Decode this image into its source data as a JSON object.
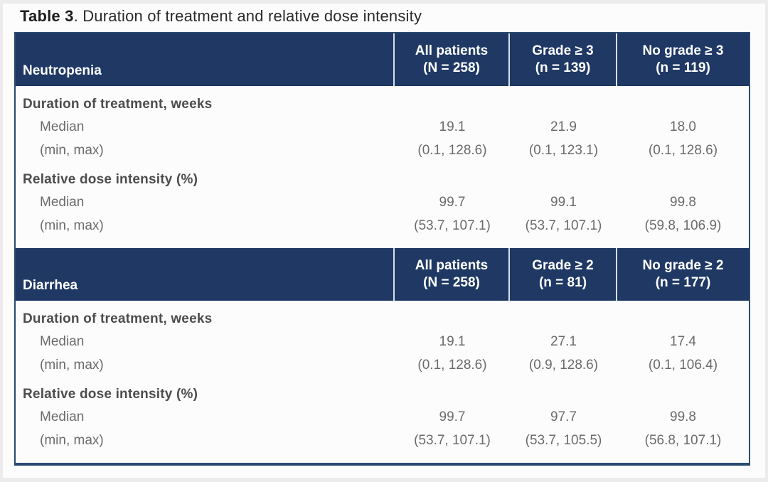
{
  "page": {
    "title_bold": "Table 3",
    "title_rest": ". Duration of treatment and relative dose intensity"
  },
  "colors": {
    "header_bg": "#1f3864",
    "header_text": "#ffffff",
    "header_divider": "#d7e0ec",
    "table_border": "#2b4a71",
    "group_label_text": "#4d4d4d",
    "value_text": "#6b6b6b",
    "title_text": "#2a2a2a",
    "page_bg": "#fcfcfc"
  },
  "table": {
    "sections": [
      {
        "label": "Neutropenia",
        "columns": [
          {
            "line1": "All patients",
            "line2": "(N = 258)"
          },
          {
            "line1": "Grade ≥ 3",
            "line2": "(n = 139)"
          },
          {
            "line1": "No grade ≥ 3",
            "line2": "(n = 119)"
          }
        ],
        "groups": [
          {
            "label": "Duration of treatment, weeks",
            "rows": [
              {
                "label": "Median",
                "values": [
                  "19.1",
                  "21.9",
                  "18.0"
                ]
              },
              {
                "label": "(min, max)",
                "values": [
                  "(0.1, 128.6)",
                  "(0.1, 123.1)",
                  "(0.1, 128.6)"
                ]
              }
            ]
          },
          {
            "label": "Relative dose intensity (%)",
            "rows": [
              {
                "label": "Median",
                "values": [
                  "99.7",
                  "99.1",
                  "99.8"
                ]
              },
              {
                "label": "(min, max)",
                "values": [
                  "(53.7, 107.1)",
                  "(53.7, 107.1)",
                  "(59.8, 106.9)"
                ]
              }
            ]
          }
        ]
      },
      {
        "label": "Diarrhea",
        "columns": [
          {
            "line1": "All patients",
            "line2": "(N = 258)"
          },
          {
            "line1": "Grade ≥ 2",
            "line2": "(n = 81)"
          },
          {
            "line1": "No grade ≥ 2",
            "line2": "(n = 177)"
          }
        ],
        "groups": [
          {
            "label": "Duration of treatment, weeks",
            "rows": [
              {
                "label": "Median",
                "values": [
                  "19.1",
                  "27.1",
                  "17.4"
                ]
              },
              {
                "label": "(min, max)",
                "values": [
                  "(0.1, 128.6)",
                  "(0.9, 128.6)",
                  "(0.1, 106.4)"
                ]
              }
            ]
          },
          {
            "label": "Relative dose intensity (%)",
            "rows": [
              {
                "label": "Median",
                "values": [
                  "99.7",
                  "97.7",
                  "99.8"
                ]
              },
              {
                "label": "(min, max)",
                "values": [
                  "(53.7, 107.1)",
                  "(53.7, 105.5)",
                  "(56.8, 107.1)"
                ]
              }
            ]
          }
        ]
      }
    ]
  }
}
